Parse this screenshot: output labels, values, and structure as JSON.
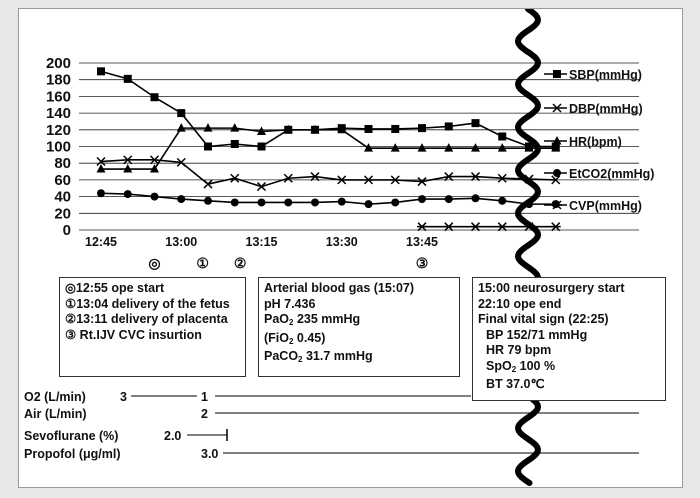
{
  "chart_data": {
    "type": "line",
    "x": [
      "12:45",
      "12:50",
      "12:55",
      "13:00",
      "13:05",
      "13:10",
      "13:15",
      "13:20",
      "13:25",
      "13:30",
      "13:35",
      "13:40",
      "13:45",
      "13:50",
      "13:55",
      "14:00",
      "14:05",
      "14:10"
    ],
    "x_tick_labels": [
      "12:45",
      "13:00",
      "13:15",
      "13:30",
      "13:45"
    ],
    "y_tick_labels": [
      "0",
      "20",
      "40",
      "60",
      "80",
      "100",
      "120",
      "140",
      "160",
      "180",
      "200"
    ],
    "ylim": [
      0,
      200
    ],
    "grid": "horizontal",
    "legend": "right",
    "series": [
      {
        "name": "SBP(mmHg)",
        "marker": "square",
        "x": [
          "12:45",
          "12:50",
          "12:55",
          "13:00",
          "13:05",
          "13:10",
          "13:15",
          "13:20",
          "13:25",
          "13:30",
          "13:35",
          "13:40",
          "13:45",
          "13:50",
          "13:55",
          "14:00",
          "14:05",
          "14:10"
        ],
        "values": [
          190,
          181,
          159,
          140,
          100,
          103,
          100,
          120,
          120,
          122,
          121,
          121,
          122,
          124,
          128,
          112,
          100,
          100
        ]
      },
      {
        "name": "DBP(mmHg)",
        "marker": "cross",
        "x": [
          "12:45",
          "12:50",
          "12:55",
          "13:00",
          "13:05",
          "13:10",
          "13:15",
          "13:20",
          "13:25",
          "13:30",
          "13:35",
          "13:40",
          "13:45",
          "13:50",
          "13:55",
          "14:00",
          "14:05",
          "14:10"
        ],
        "values": [
          82,
          84,
          84,
          81,
          55,
          62,
          52,
          62,
          64,
          60,
          60,
          60,
          58,
          64,
          64,
          62,
          61,
          60
        ]
      },
      {
        "name": "HR(bpm)",
        "marker": "triangle",
        "x": [
          "12:45",
          "12:50",
          "12:55",
          "13:00",
          "13:05",
          "13:10",
          "13:15",
          "13:20",
          "13:25",
          "13:30",
          "13:35",
          "13:40",
          "13:45",
          "13:50",
          "13:55",
          "14:00",
          "14:05",
          "14:10"
        ],
        "values": [
          73,
          73,
          73,
          122,
          122,
          122,
          118,
          120,
          120,
          120,
          98,
          98,
          98,
          98,
          98,
          98,
          98,
          98
        ]
      },
      {
        "name": "EtCO2(mmHg)",
        "marker": "circle",
        "x": [
          "12:45",
          "12:50",
          "12:55",
          "13:00",
          "13:05",
          "13:10",
          "13:15",
          "13:20",
          "13:25",
          "13:30",
          "13:35",
          "13:40",
          "13:45",
          "13:50",
          "13:55",
          "14:00",
          "14:05",
          "14:10"
        ],
        "values": [
          44,
          43,
          40,
          37,
          35,
          33,
          33,
          33,
          33,
          34,
          31,
          33,
          37,
          37,
          38,
          35,
          31,
          31
        ]
      },
      {
        "name": "CVP(mmHg)",
        "marker": "star",
        "x": [
          "13:45",
          "13:50",
          "13:55",
          "14:00",
          "14:05",
          "14:10"
        ],
        "values": [
          4,
          4,
          4,
          4,
          4,
          4
        ]
      }
    ]
  },
  "event_markers": [
    {
      "symbol": "◎",
      "x": "12:55"
    },
    {
      "symbol": "①",
      "x": "13:04"
    },
    {
      "symbol": "②",
      "x": "13:11"
    },
    {
      "symbol": "③",
      "x": "13:45"
    }
  ],
  "events_box": {
    "lines": [
      "◎12:55 ope start",
      "①13:04 delivery of the fetus",
      "②13:11 delivery of placenta",
      "③ Rt.IJV CVC insurtion"
    ]
  },
  "abg_box": {
    "title": "Arterial blood gas (15:07)",
    "ph": "pH  7.436",
    "pao2": "PaO",
    "pao2_value": "  235 mmHg",
    "fio2": "(FiO",
    "fio2_value": " 0.45)",
    "paco2": "PaCO",
    "paco2_value": "  31.7 mmHg",
    "sub2": "2"
  },
  "final_box": {
    "line1": "15:00  neurosurgery start",
    "line2": "22:10  ope end",
    "line3": "Final vital sign (22:25)",
    "bp": "BP  152/71 mmHg",
    "hr": "HR  79 bpm",
    "spo2": "SpO",
    "spo2_value": "  100 %",
    "bt": "BT  37.0℃"
  },
  "lower_rows": {
    "o2_label": "O2 (L/min)",
    "o2_start": "3",
    "o2_value": "1",
    "air_label": "Air (L/min)",
    "air_value": "2",
    "sevo_label": "Sevoflurane (%)",
    "sevo_value": "2.0",
    "propofol_label": "Propofol (μg/ml)",
    "propofol_value": "3.0"
  }
}
